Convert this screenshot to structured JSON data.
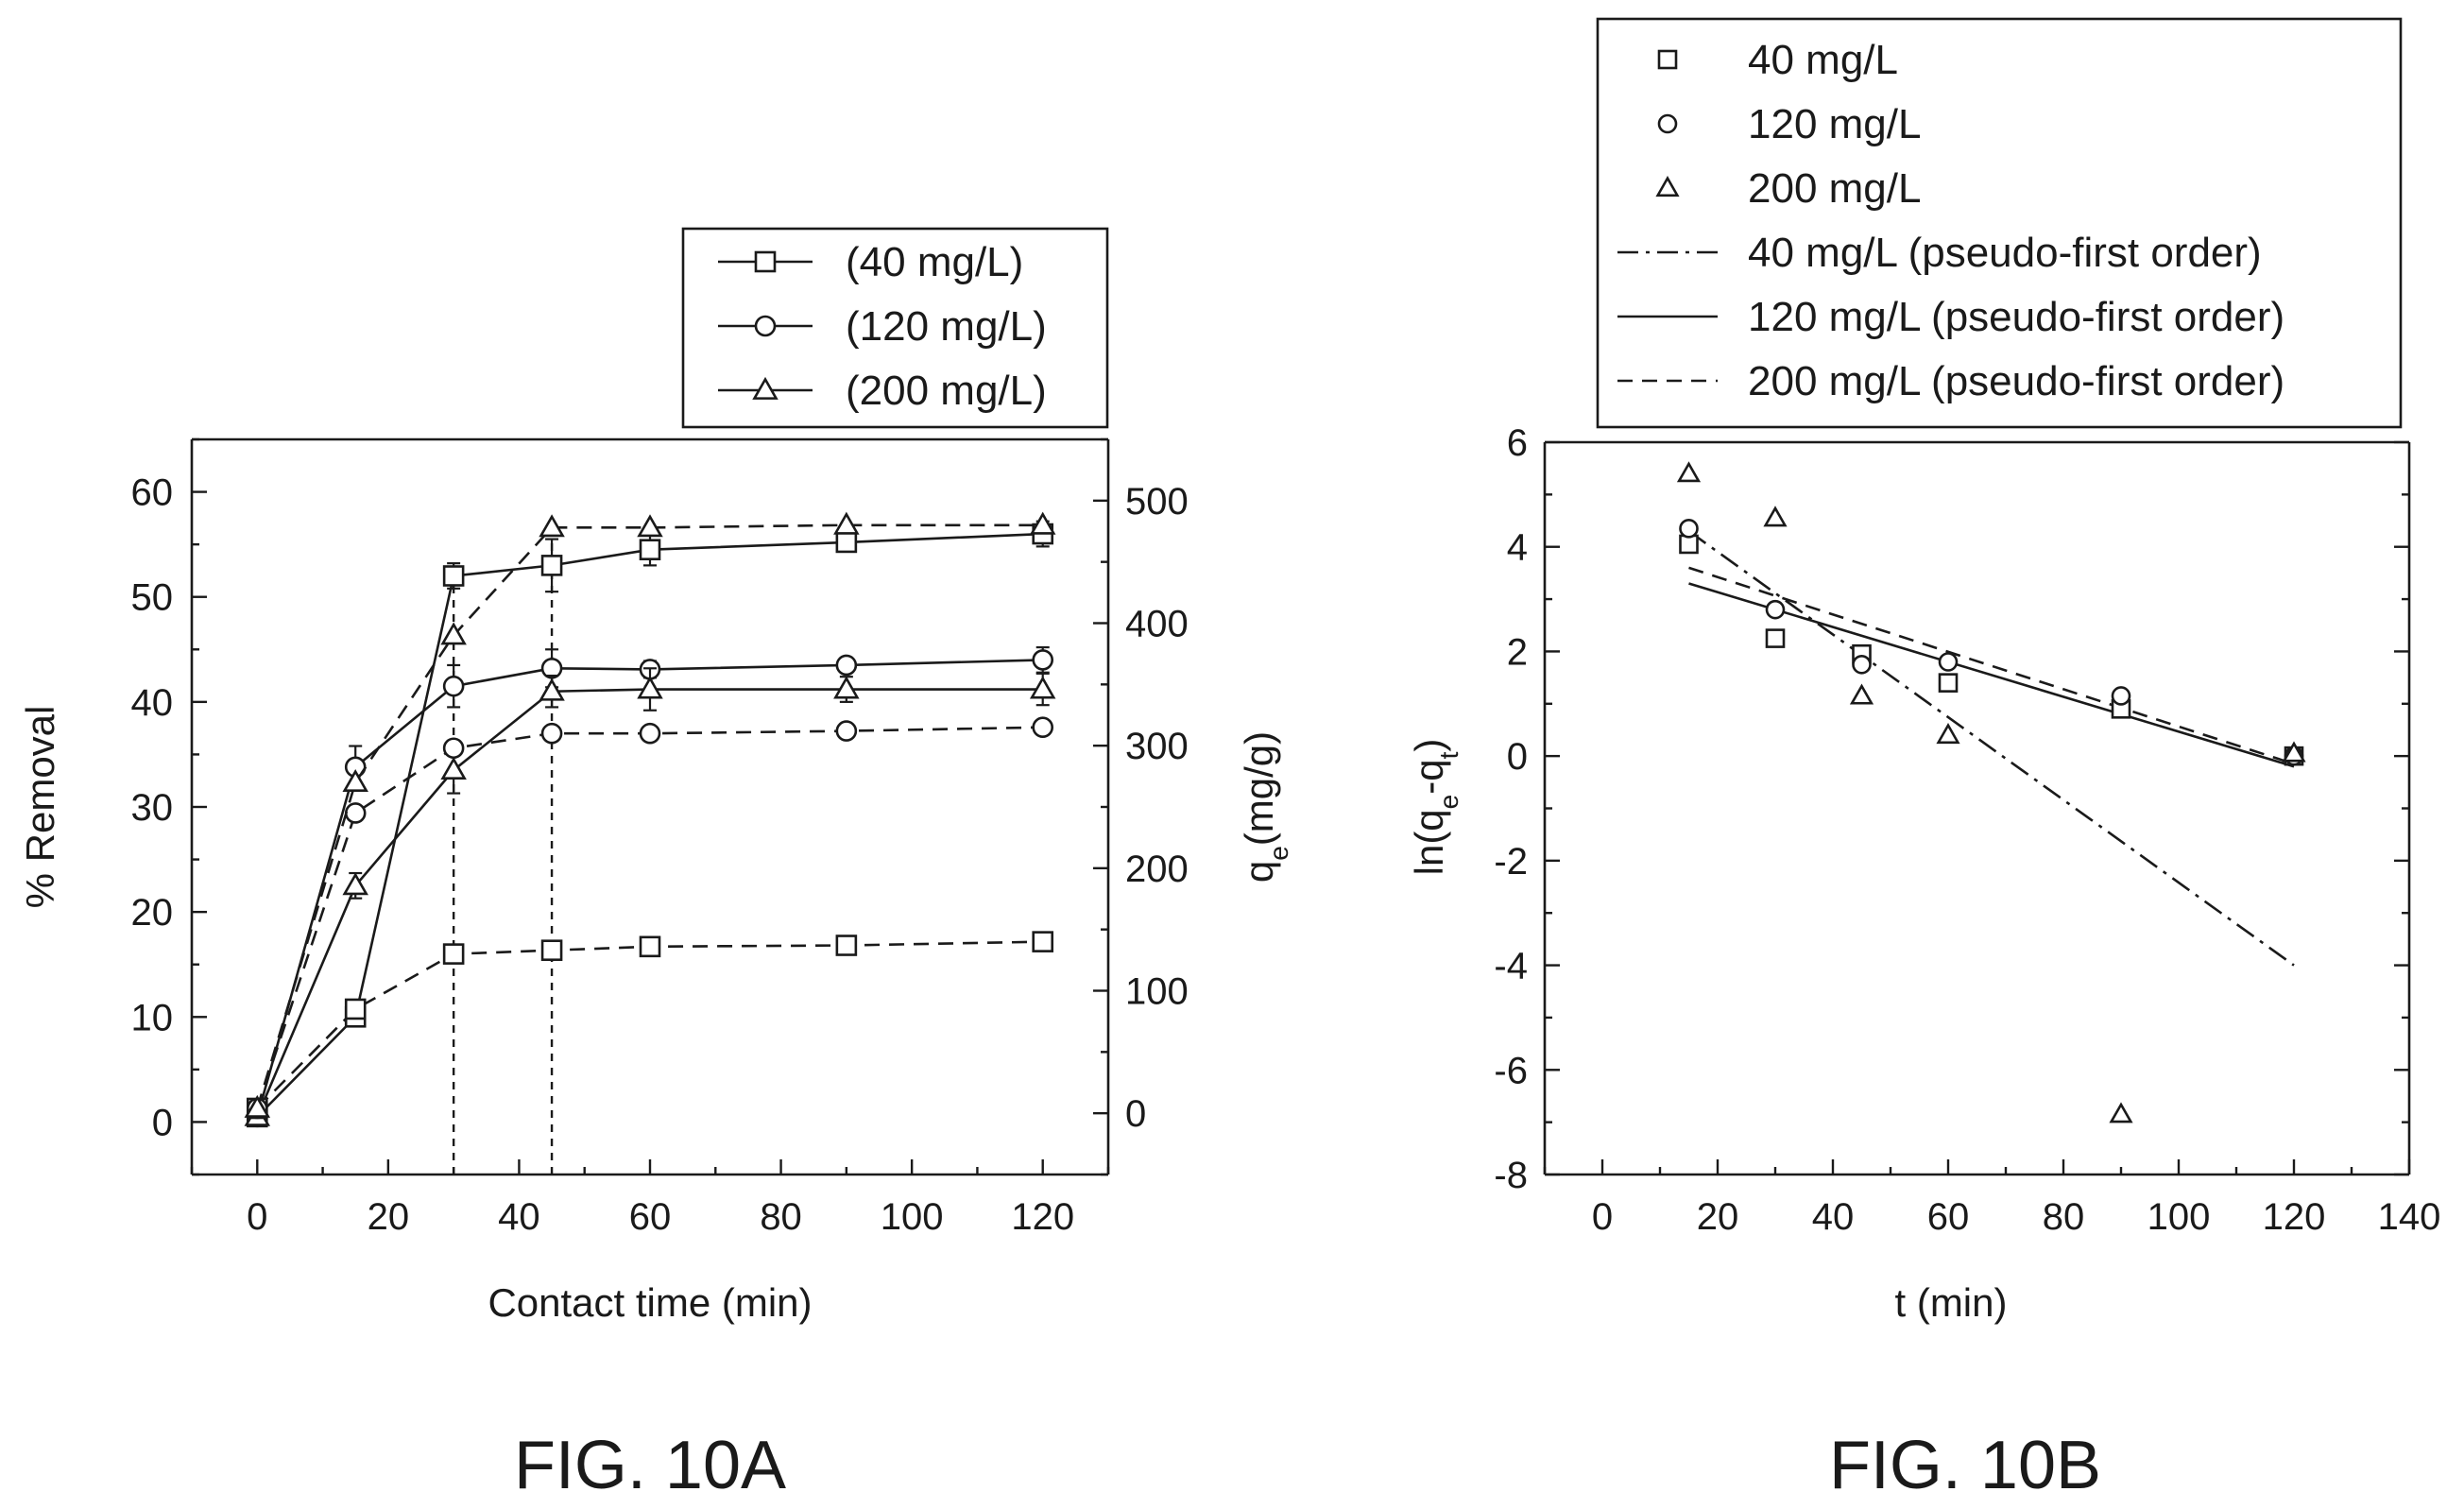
{
  "chart_data": [
    {
      "type": "line",
      "caption": "FIG. 10A",
      "xlabel": "Contact time (min)",
      "ylabel": "% Removal",
      "y2label": "qe(mg/g)",
      "xlim": [
        -10,
        130
      ],
      "ylim": [
        -5,
        65
      ],
      "y2lim": [
        -50,
        550
      ],
      "xticks": [
        0,
        20,
        40,
        60,
        80,
        100,
        120
      ],
      "yticks": [
        0,
        10,
        20,
        30,
        40,
        50,
        60
      ],
      "y2ticks": [
        0,
        100,
        200,
        300,
        400,
        500
      ],
      "grid": false,
      "legend_position": "top-right",
      "legend": [
        "(40 mg/L)",
        "(120 mg/L)",
        "(200 mg/L)"
      ],
      "x": [
        0,
        15,
        30,
        45,
        60,
        90,
        120
      ],
      "series": [
        {
          "name": "(40 mg/L)",
          "axis": "left",
          "marker": "square",
          "dash": "solid",
          "values": [
            0.5,
            10.0,
            52.0,
            53.0,
            54.5,
            55.2,
            56.0
          ],
          "errors": [
            0.3,
            0.8,
            1.2,
            2.5,
            1.5,
            0.8,
            1.2
          ]
        },
        {
          "name": "(120 mg/L)",
          "axis": "left",
          "marker": "circle",
          "dash": "solid",
          "values": [
            0.5,
            33.8,
            41.5,
            43.2,
            43.1,
            43.5,
            44.0
          ],
          "errors": [
            0.3,
            2.0,
            2.0,
            1.8,
            0.8,
            0.6,
            1.2
          ]
        },
        {
          "name": "(200 mg/L)",
          "axis": "left",
          "marker": "triangle",
          "dash": "solid",
          "values": [
            0.5,
            22.5,
            33.5,
            41.0,
            41.2,
            41.2,
            41.2
          ],
          "errors": [
            0.3,
            1.2,
            2.2,
            1.5,
            2.0,
            1.2,
            1.5
          ]
        },
        {
          "name": "qe 40 mg/L",
          "axis": "right",
          "marker": "square",
          "dash": "dashed",
          "values": [
            4,
            85,
            130,
            133,
            136,
            137,
            140
          ]
        },
        {
          "name": "qe 120 mg/L",
          "axis": "right",
          "marker": "circle",
          "dash": "dashed",
          "values": [
            4,
            245,
            298,
            310,
            310,
            312,
            315
          ]
        },
        {
          "name": "qe 200 mg/L",
          "axis": "right",
          "marker": "triangle",
          "dash": "dashed",
          "values": [
            4,
            270,
            390,
            478,
            478,
            480,
            480
          ]
        }
      ],
      "reference_lines_x": [
        30,
        45
      ]
    },
    {
      "type": "scatter",
      "caption": "FIG. 10B",
      "xlabel": "t (min)",
      "ylabel": "ln(qe-qt)",
      "xlim": [
        -10,
        140
      ],
      "ylim": [
        -8,
        6
      ],
      "xticks": [
        0,
        20,
        40,
        60,
        80,
        100,
        120,
        140
      ],
      "yticks": [
        -8,
        -6,
        -4,
        -2,
        0,
        2,
        4,
        6
      ],
      "grid": false,
      "legend_position": "top",
      "legend": [
        "40 mg/L",
        "120 mg/L",
        "200 mg/L",
        "40 mg/L (pseudo-first order)",
        "120 mg/L (pseudo-first order)",
        "200 mg/L (pseudo-first order)"
      ],
      "scatter_series": [
        {
          "name": "40 mg/L",
          "marker": "square",
          "x": [
            15,
            30,
            45,
            60,
            90,
            120
          ],
          "y": [
            4.05,
            2.25,
            1.95,
            1.4,
            0.9,
            0.0
          ]
        },
        {
          "name": "120 mg/L",
          "marker": "circle",
          "x": [
            15,
            30,
            45,
            60,
            90,
            120
          ],
          "y": [
            4.35,
            2.8,
            1.75,
            1.8,
            1.15,
            0.0
          ]
        },
        {
          "name": "200 mg/L",
          "marker": "triangle",
          "x": [
            15,
            30,
            45,
            60,
            90,
            120
          ],
          "y": [
            5.4,
            4.55,
            1.15,
            0.4,
            -6.85,
            0.05
          ]
        }
      ],
      "fit_lines": [
        {
          "name": "40 mg/L (pseudo-first order)",
          "dash": "dashdot",
          "x": [
            15,
            120
          ],
          "y": [
            4.3,
            -4.0
          ]
        },
        {
          "name": "120 mg/L (pseudo-first order)",
          "dash": "solid",
          "x": [
            15,
            120
          ],
          "y": [
            3.3,
            -0.2
          ]
        },
        {
          "name": "200 mg/L (pseudo-first order)",
          "dash": "dashed",
          "x": [
            15,
            120
          ],
          "y": [
            3.6,
            -0.15
          ]
        }
      ]
    }
  ]
}
